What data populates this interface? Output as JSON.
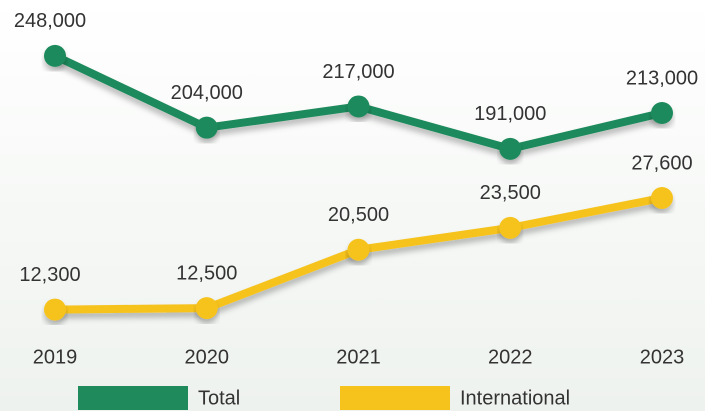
{
  "chart_data": {
    "type": "line",
    "categories": [
      "2019",
      "2020",
      "2021",
      "2022",
      "2023"
    ],
    "series": [
      {
        "name": "Total",
        "color": "#1f8a5b",
        "values": [
          248000,
          204000,
          217000,
          191000,
          213000
        ],
        "value_labels": [
          "248,000",
          "204,000",
          "217,000",
          "191,000",
          "213,000"
        ]
      },
      {
        "name": "International",
        "color": "#f6c21c",
        "axis": "y2",
        "values": [
          12300,
          12500,
          20500,
          23500,
          27600
        ],
        "value_labels": [
          "12,300",
          "12,500",
          "20,500",
          "23,500",
          "27,600"
        ]
      }
    ],
    "ylim": [
      80000,
      270000
    ],
    "y2lim": [
      9500,
      52000
    ],
    "legend": "bottom"
  }
}
